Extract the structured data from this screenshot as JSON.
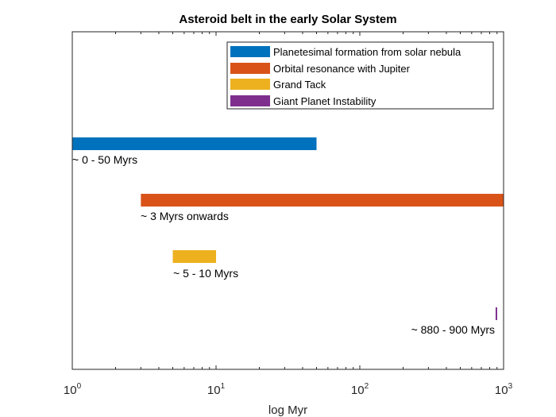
{
  "chart_data": {
    "type": "bar",
    "orientation": "horizontal",
    "title": "Asteroid belt in the early Solar System",
    "xlabel": "log Myr",
    "ylabel": "",
    "xscale": "log",
    "xlim": [
      1,
      1000
    ],
    "grid": false,
    "legend_position": "top-right",
    "x_ticks": [
      {
        "base": "10",
        "exp": "0",
        "value": 1
      },
      {
        "base": "10",
        "exp": "1",
        "value": 10
      },
      {
        "base": "10",
        "exp": "2",
        "value": 100
      },
      {
        "base": "10",
        "exp": "3",
        "value": 1000
      }
    ],
    "series": [
      {
        "name": "Planetesimal formation from solar nebula",
        "color": "#0072BD",
        "start": 1,
        "end": 50,
        "label": "~ 0 - 50 Myrs"
      },
      {
        "name": "Orbital resonance with Jupiter",
        "color": "#D95319",
        "start": 3,
        "end": 1000,
        "label": "~ 3 Myrs onwards"
      },
      {
        "name": "Grand Tack",
        "color": "#EDB120",
        "start": 5,
        "end": 10,
        "label": "~ 5 - 10 Myrs"
      },
      {
        "name": "Giant Planet Instability",
        "color": "#7E2F8E",
        "start": 880,
        "end": 900,
        "label": "~ 880 - 900 Myrs"
      }
    ]
  }
}
